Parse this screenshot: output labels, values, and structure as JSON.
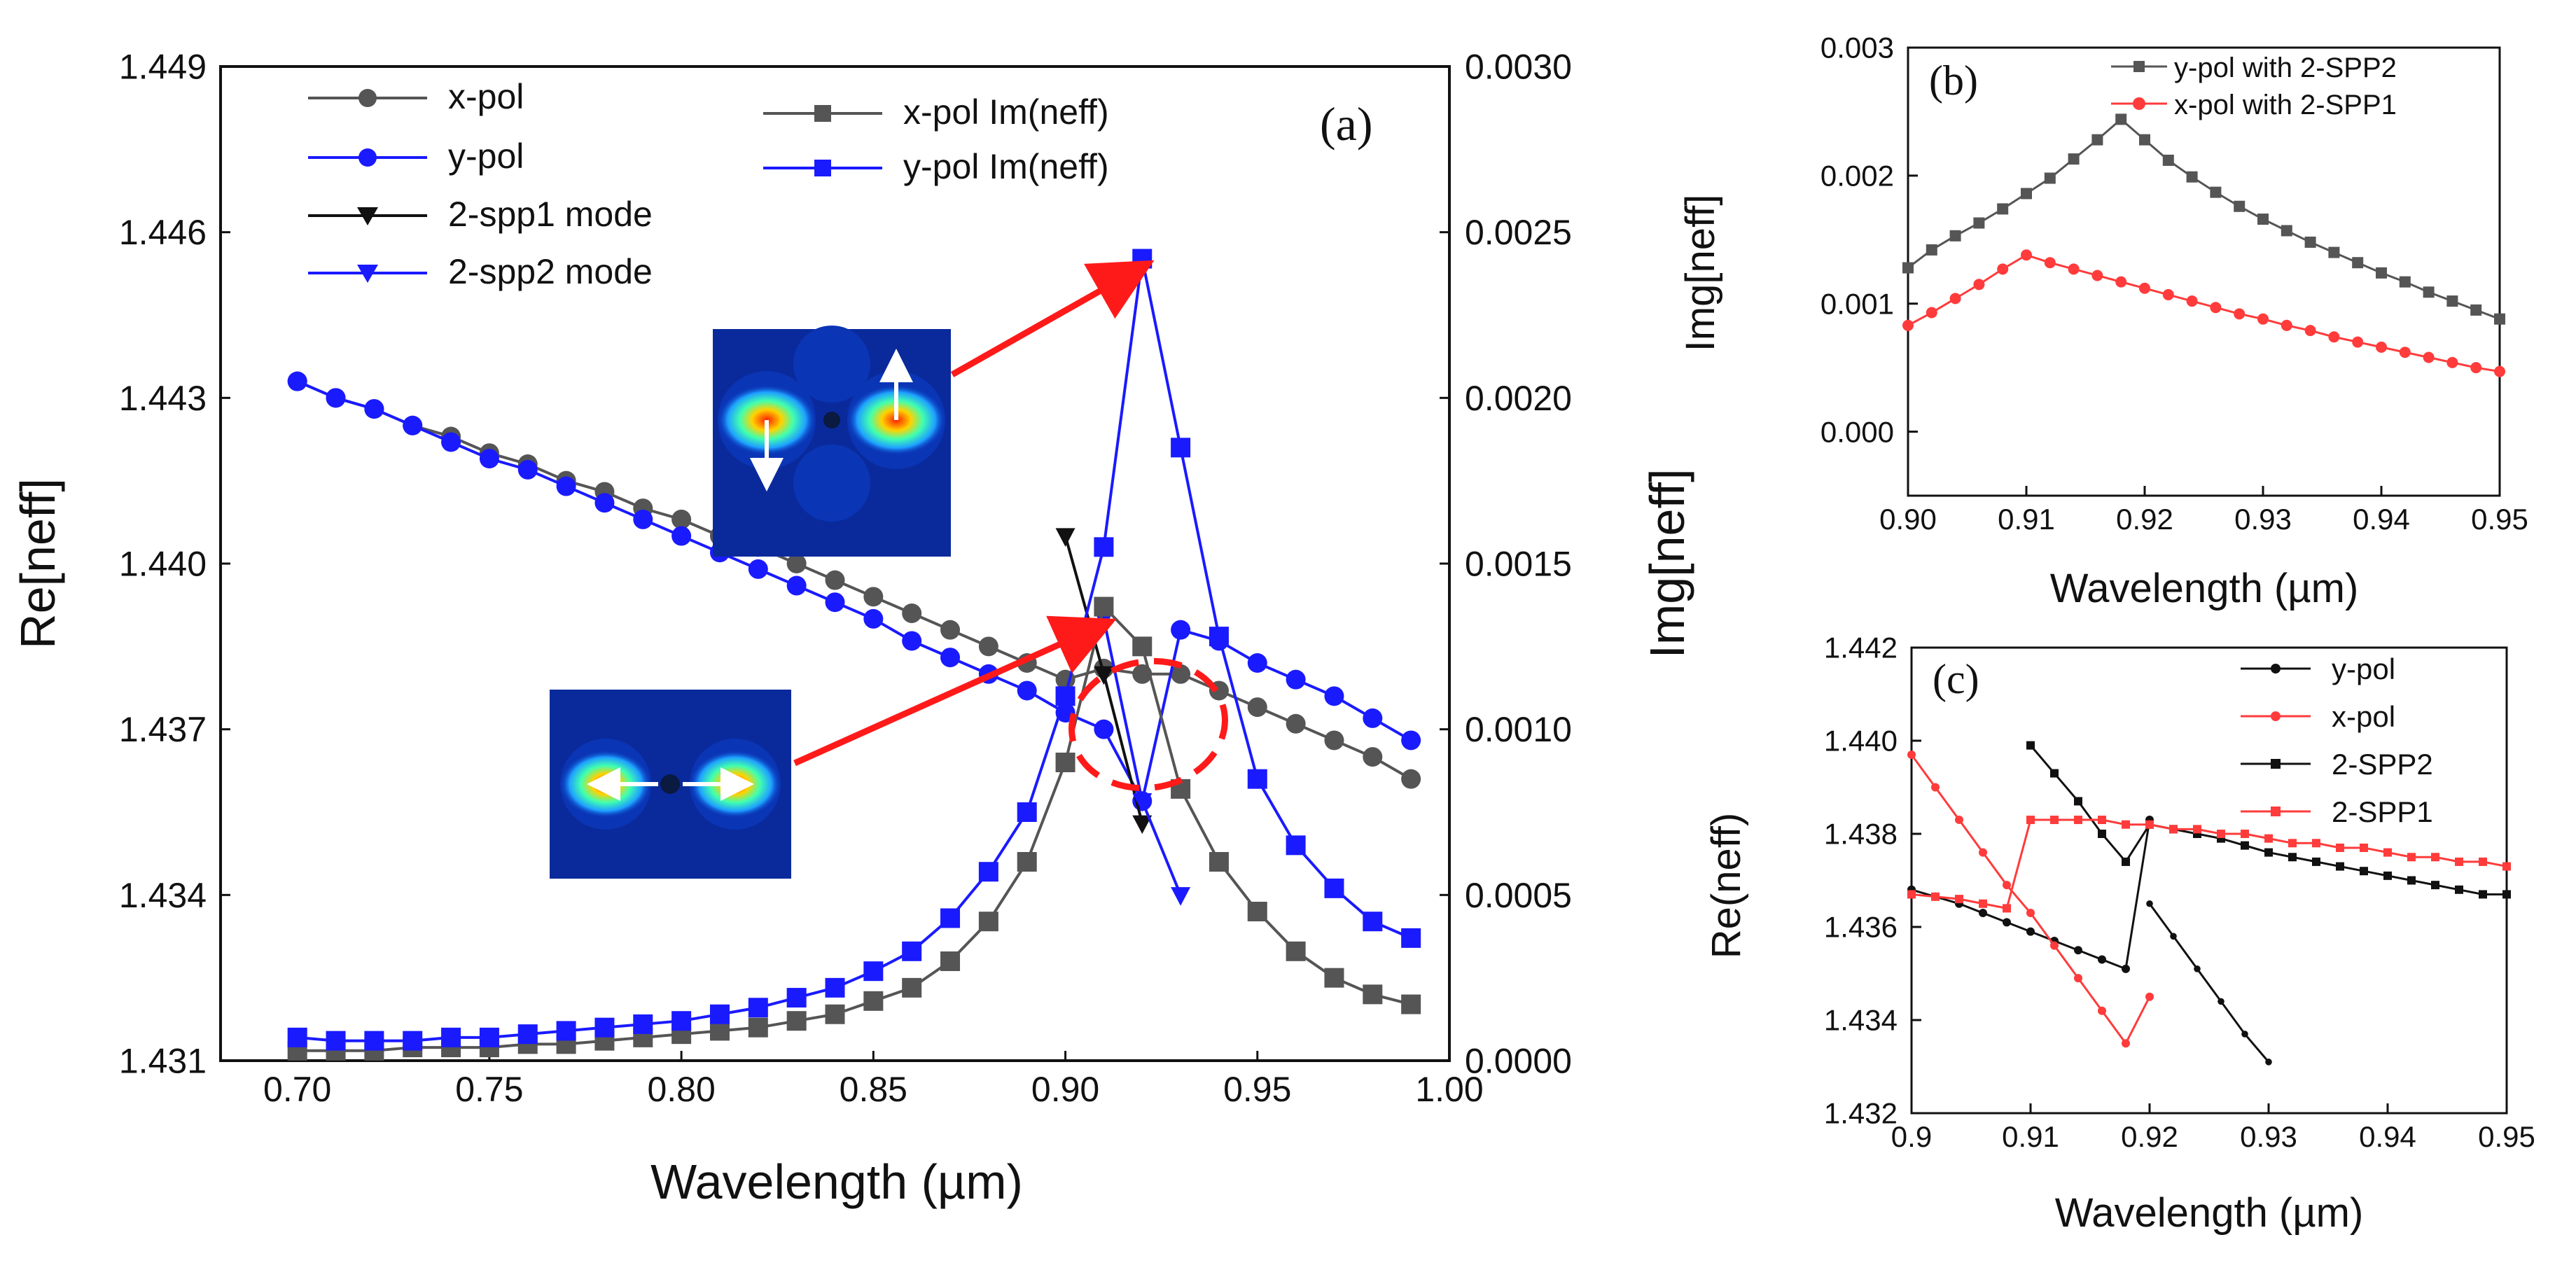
{
  "chart_data": [
    {
      "id": "a",
      "type": "line",
      "panel_label": "(a)",
      "xlabel": "Wavelength (µm)",
      "ylabel": "Re[neff]",
      "y2label": "Img[neff]",
      "xlim": [
        0.68,
        1.0
      ],
      "ylim": [
        1.431,
        1.449
      ],
      "y2lim": [
        0.0,
        0.003
      ],
      "xticks": [
        "0.70",
        "0.75",
        "0.80",
        "0.85",
        "0.90",
        "0.95",
        "1.00"
      ],
      "xtick_values": [
        0.7,
        0.75,
        0.8,
        0.85,
        0.9,
        0.95,
        1.0
      ],
      "yticks": [
        "1.431",
        "1.434",
        "1.437",
        "1.440",
        "1.443",
        "1.446",
        "1.449"
      ],
      "ytick_values": [
        1.431,
        1.434,
        1.437,
        1.44,
        1.443,
        1.446,
        1.449
      ],
      "y2ticks": [
        "0.0000",
        "0.0005",
        "0.0010",
        "0.0015",
        "0.0020",
        "0.0025",
        "0.0030"
      ],
      "y2tick_values": [
        0.0,
        0.0005,
        0.001,
        0.0015,
        0.002,
        0.0025,
        0.003
      ],
      "series": [
        {
          "name": "x-pol",
          "axis": "left",
          "color": "#555555",
          "marker": "circle",
          "x": [
            0.7,
            0.71,
            0.72,
            0.73,
            0.74,
            0.75,
            0.76,
            0.77,
            0.78,
            0.79,
            0.8,
            0.81,
            0.82,
            0.83,
            0.84,
            0.85,
            0.86,
            0.87,
            0.88,
            0.89,
            0.9,
            0.91,
            0.92,
            0.93,
            0.94,
            0.95,
            0.96,
            0.97,
            0.98,
            0.99
          ],
          "y": [
            1.4433,
            1.443,
            1.4428,
            1.4425,
            1.4423,
            1.442,
            1.4418,
            1.4415,
            1.4413,
            1.441,
            1.4408,
            1.4405,
            1.4403,
            1.44,
            1.4397,
            1.4394,
            1.4391,
            1.4388,
            1.4385,
            1.4382,
            1.4379,
            1.4381,
            1.438,
            1.438,
            1.4377,
            1.4374,
            1.4371,
            1.4368,
            1.4365,
            1.4361
          ]
        },
        {
          "name": "y-pol",
          "axis": "left",
          "color": "#1a1aff",
          "marker": "circle",
          "x": [
            0.7,
            0.71,
            0.72,
            0.73,
            0.74,
            0.75,
            0.76,
            0.77,
            0.78,
            0.79,
            0.8,
            0.81,
            0.82,
            0.83,
            0.84,
            0.85,
            0.86,
            0.87,
            0.88,
            0.89,
            0.9,
            0.91,
            0.92,
            0.93,
            0.94,
            0.95,
            0.96,
            0.97,
            0.98,
            0.99
          ],
          "y": [
            1.4433,
            1.443,
            1.4428,
            1.4425,
            1.4422,
            1.4419,
            1.4417,
            1.4414,
            1.4411,
            1.4408,
            1.4405,
            1.4402,
            1.4399,
            1.4396,
            1.4393,
            1.439,
            1.4386,
            1.4383,
            1.438,
            1.4377,
            1.4373,
            1.437,
            1.4357,
            1.4388,
            1.4386,
            1.4382,
            1.4379,
            1.4376,
            1.4372,
            1.4368
          ]
        },
        {
          "name": "2-spp1 mode",
          "axis": "left",
          "color": "#111111",
          "marker": "tri-down",
          "x": [
            0.9,
            0.91,
            0.92
          ],
          "y": [
            1.4405,
            1.438,
            1.4353
          ]
        },
        {
          "name": "2-spp2 mode",
          "axis": "left",
          "color": "#1a1aff",
          "marker": "tri-down",
          "x": [
            0.91,
            0.92,
            0.93
          ],
          "y": [
            1.439,
            1.4357,
            1.434
          ]
        },
        {
          "name": "x-pol Im(neff)",
          "axis": "right",
          "color": "#555555",
          "marker": "square",
          "x": [
            0.7,
            0.71,
            0.72,
            0.73,
            0.74,
            0.75,
            0.76,
            0.77,
            0.78,
            0.79,
            0.8,
            0.81,
            0.82,
            0.83,
            0.84,
            0.85,
            0.86,
            0.87,
            0.88,
            0.89,
            0.9,
            0.91,
            0.92,
            0.93,
            0.94,
            0.95,
            0.96,
            0.97,
            0.98,
            0.99
          ],
          "y": [
            3e-05,
            3e-05,
            3e-05,
            4e-05,
            4e-05,
            4e-05,
            5e-05,
            5e-05,
            6e-05,
            7e-05,
            8e-05,
            9e-05,
            0.0001,
            0.00012,
            0.00014,
            0.00018,
            0.00022,
            0.0003,
            0.00042,
            0.0006,
            0.0009,
            0.00137,
            0.00125,
            0.00082,
            0.0006,
            0.00045,
            0.00033,
            0.00025,
            0.0002,
            0.00017
          ]
        },
        {
          "name": "y-pol Im(neff)",
          "axis": "right",
          "color": "#1a1aff",
          "marker": "square",
          "x": [
            0.7,
            0.71,
            0.72,
            0.73,
            0.74,
            0.75,
            0.76,
            0.77,
            0.78,
            0.79,
            0.8,
            0.81,
            0.82,
            0.83,
            0.84,
            0.85,
            0.86,
            0.87,
            0.88,
            0.89,
            0.9,
            0.91,
            0.92,
            0.93,
            0.94,
            0.95,
            0.96,
            0.97,
            0.98,
            0.99
          ],
          "y": [
            7e-05,
            6e-05,
            6e-05,
            6e-05,
            7e-05,
            7e-05,
            8e-05,
            9e-05,
            0.0001,
            0.00011,
            0.00012,
            0.00014,
            0.00016,
            0.00019,
            0.00022,
            0.00027,
            0.00033,
            0.00043,
            0.00057,
            0.00075,
            0.0011,
            0.00155,
            0.00242,
            0.00185,
            0.00128,
            0.00085,
            0.00065,
            0.00052,
            0.00042,
            0.00037
          ]
        }
      ],
      "annotations": [
        "inset mode profile (y-pol field)",
        "inset mode profile (x-pol field)",
        "dashed ellipse at anti-crossing"
      ]
    },
    {
      "id": "b",
      "type": "line",
      "panel_label": "(b)",
      "xlabel": "Wavelength (µm)",
      "ylabel": "Img[neff]",
      "xlim": [
        0.9,
        0.95
      ],
      "ylim": [
        -0.0005,
        0.003
      ],
      "xticks": [
        "0.90",
        "0.91",
        "0.92",
        "0.93",
        "0.94",
        "0.95"
      ],
      "xtick_values": [
        0.9,
        0.91,
        0.92,
        0.93,
        0.94,
        0.95
      ],
      "yticks": [
        "0.000",
        "0.001",
        "0.002",
        "0.003"
      ],
      "ytick_values": [
        0.0,
        0.001,
        0.002,
        0.003
      ],
      "series": [
        {
          "name": "y-pol with 2-SPP2",
          "color": "#555555",
          "marker": "square",
          "x": [
            0.9,
            0.902,
            0.904,
            0.906,
            0.908,
            0.91,
            0.912,
            0.914,
            0.916,
            0.918,
            0.92,
            0.922,
            0.924,
            0.926,
            0.928,
            0.93,
            0.932,
            0.934,
            0.936,
            0.938,
            0.94,
            0.942,
            0.944,
            0.946,
            0.948,
            0.95
          ],
          "y": [
            0.00128,
            0.00142,
            0.00153,
            0.00163,
            0.00174,
            0.00186,
            0.00198,
            0.00213,
            0.00228,
            0.00244,
            0.00228,
            0.00212,
            0.00199,
            0.00187,
            0.00176,
            0.00166,
            0.00157,
            0.00148,
            0.0014,
            0.00132,
            0.00124,
            0.00117,
            0.00109,
            0.00102,
            0.00095,
            0.00088
          ]
        },
        {
          "name": "x-pol with 2-SPP1",
          "color": "#ff3b3b",
          "marker": "circle",
          "x": [
            0.9,
            0.902,
            0.904,
            0.906,
            0.908,
            0.91,
            0.912,
            0.914,
            0.916,
            0.918,
            0.92,
            0.922,
            0.924,
            0.926,
            0.928,
            0.93,
            0.932,
            0.934,
            0.936,
            0.938,
            0.94,
            0.942,
            0.944,
            0.946,
            0.948,
            0.95
          ],
          "y": [
            0.00083,
            0.00093,
            0.00104,
            0.00115,
            0.00127,
            0.00138,
            0.00132,
            0.00127,
            0.00122,
            0.00117,
            0.00112,
            0.00107,
            0.00102,
            0.00097,
            0.00092,
            0.00088,
            0.00083,
            0.00079,
            0.00074,
            0.0007,
            0.00066,
            0.00062,
            0.00058,
            0.00054,
            0.0005,
            0.00047
          ]
        }
      ]
    },
    {
      "id": "c",
      "type": "line",
      "panel_label": "(c)",
      "xlabel": "Wavelength (µm)",
      "ylabel": "Re(neff)",
      "xlim": [
        0.9,
        0.95
      ],
      "ylim": [
        1.432,
        1.442
      ],
      "xticks": [
        "0.9",
        "0.91",
        "0.92",
        "0.93",
        "0.94",
        "0.95"
      ],
      "xtick_values": [
        0.9,
        0.91,
        0.92,
        0.93,
        0.94,
        0.95
      ],
      "yticks": [
        "1.432",
        "1.434",
        "1.436",
        "1.438",
        "1.440",
        "1.442"
      ],
      "ytick_values": [
        1.432,
        1.434,
        1.436,
        1.438,
        1.44,
        1.442
      ],
      "series": [
        {
          "name": "y-pol",
          "color": "#111111",
          "marker": "circle",
          "x": [
            0.9,
            0.902,
            0.904,
            0.906,
            0.908,
            0.91,
            0.912,
            0.914,
            0.916,
            0.918,
            0.92
          ],
          "y": [
            1.4368,
            1.43665,
            1.4365,
            1.4363,
            1.4361,
            1.4359,
            1.4357,
            1.4355,
            1.4353,
            1.4351,
            1.4383
          ]
        },
        {
          "name": "x-pol",
          "color": "#ff3b3b",
          "marker": "circle",
          "x": [
            0.9,
            0.902,
            0.904,
            0.906,
            0.908,
            0.91,
            0.912,
            0.914,
            0.916,
            0.918,
            0.92
          ],
          "y": [
            1.4397,
            1.439,
            1.4383,
            1.4376,
            1.4369,
            1.4363,
            1.4356,
            1.4349,
            1.4342,
            1.4335,
            1.4345
          ]
        },
        {
          "name": "2-SPP2",
          "color": "#111111",
          "marker": "square",
          "x": [
            0.91,
            0.912,
            0.914,
            0.916,
            0.918,
            0.92,
            0.922,
            0.924,
            0.926,
            0.928,
            0.93,
            0.932,
            0.934,
            0.936,
            0.938,
            0.94,
            0.942,
            0.944,
            0.946,
            0.948,
            0.95
          ],
          "y": [
            1.4399,
            1.4393,
            1.4387,
            1.438,
            1.4374,
            1.4382,
            1.4381,
            1.438,
            1.4379,
            1.43775,
            1.4376,
            1.4375,
            1.4374,
            1.4373,
            1.4372,
            1.4371,
            1.437,
            1.4369,
            1.4368,
            1.4367,
            1.4367
          ]
        },
        {
          "name": "2-SPP1",
          "color": "#ff3b3b",
          "marker": "square",
          "x": [
            0.9,
            0.902,
            0.904,
            0.906,
            0.908,
            0.91,
            0.912,
            0.914,
            0.916,
            0.918,
            0.92,
            0.922,
            0.924,
            0.926,
            0.928,
            0.93,
            0.932,
            0.934,
            0.936,
            0.938,
            0.94,
            0.942,
            0.944,
            0.946,
            0.948,
            0.95
          ],
          "y": [
            1.4367,
            1.43665,
            1.4366,
            1.4365,
            1.4364,
            1.4383,
            1.4383,
            1.4383,
            1.4383,
            1.4382,
            1.4382,
            1.4381,
            1.4381,
            1.438,
            1.438,
            1.4379,
            1.4378,
            1.4378,
            1.4377,
            1.4377,
            1.4376,
            1.4375,
            1.4375,
            1.4374,
            1.4374,
            1.4373
          ]
        }
      ],
      "extra_lines": [
        {
          "color": "#111111",
          "x": [
            0.92,
            0.922,
            0.924,
            0.926,
            0.928,
            0.93
          ],
          "y": [
            1.4365,
            1.4358,
            1.4351,
            1.4344,
            1.4337,
            1.4331
          ]
        }
      ]
    }
  ]
}
